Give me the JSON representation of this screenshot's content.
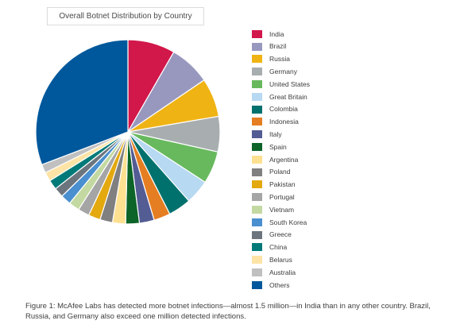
{
  "chart_data": {
    "type": "pie",
    "title": "Overall Botnet Distribution by Country",
    "slices": [
      {
        "label": "India",
        "value": 8.3,
        "color": "#d2174a"
      },
      {
        "label": "Brazil",
        "value": 7.2,
        "color": "#9898bf"
      },
      {
        "label": "Russia",
        "value": 6.8,
        "color": "#f0b314"
      },
      {
        "label": "Germany",
        "value": 6.2,
        "color": "#a8adb0"
      },
      {
        "label": "United States",
        "value": 5.7,
        "color": "#68b95e"
      },
      {
        "label": "Great Britain",
        "value": 4.3,
        "color": "#b7d9f2"
      },
      {
        "label": "Colombia",
        "value": 4.0,
        "color": "#00716d"
      },
      {
        "label": "Indonesia",
        "value": 2.9,
        "color": "#e57e22"
      },
      {
        "label": "Italy",
        "value": 2.6,
        "color": "#535c93"
      },
      {
        "label": "Spain",
        "value": 2.4,
        "color": "#0c6428"
      },
      {
        "label": "Argentina",
        "value": 2.3,
        "color": "#fde191"
      },
      {
        "label": "Poland",
        "value": 2.2,
        "color": "#808080"
      },
      {
        "label": "Pakistan",
        "value": 2.1,
        "color": "#e3a90f"
      },
      {
        "label": "Portugal",
        "value": 2.0,
        "color": "#a5a5a5"
      },
      {
        "label": "Vietnam",
        "value": 1.9,
        "color": "#c3d9a1"
      },
      {
        "label": "South Korea",
        "value": 1.8,
        "color": "#4a8fcf"
      },
      {
        "label": "Greece",
        "value": 1.7,
        "color": "#6c757d"
      },
      {
        "label": "China",
        "value": 1.7,
        "color": "#007a78"
      },
      {
        "label": "Belarus",
        "value": 1.6,
        "color": "#fde4a6"
      },
      {
        "label": "Australia",
        "value": 1.5,
        "color": "#c0c0c0"
      },
      {
        "label": "Others",
        "value": 30.8,
        "color": "#00589c"
      }
    ],
    "legend_position": "right"
  },
  "caption": "Figure 1: McAfee Labs has detected more botnet infections—almost 1.5 million—in India than in any other country. Brazil, Russia, and Germany also exceed one million detected infections."
}
